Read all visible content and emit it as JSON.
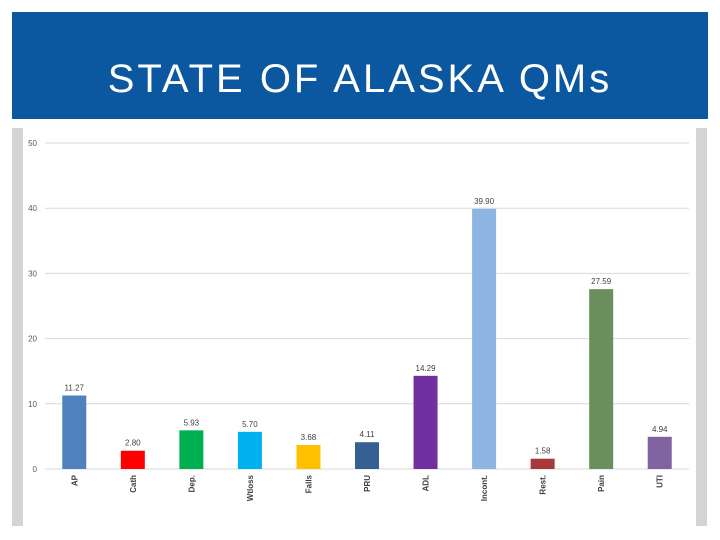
{
  "slide": {
    "title": "STATE OF ALASKA QMs",
    "colors": {
      "title_bar": "#0b57a0",
      "title_text": "#ffffff",
      "side_bars": "#d4d4d4",
      "gridline": "#d9d9d9"
    }
  },
  "chart_data": {
    "type": "bar",
    "title": "",
    "xlabel": "",
    "ylabel": "",
    "ylim": [
      0,
      50
    ],
    "yticks": [
      0,
      10,
      20,
      30,
      40,
      50
    ],
    "grid": true,
    "legend": "none",
    "categories": [
      "AP",
      "Cath",
      "Dep.",
      "Wtloss",
      "Falls",
      "PRU",
      "ADL",
      "Incont.",
      "Rest.",
      "Pain",
      "UTI"
    ],
    "values": [
      11.27,
      2.8,
      5.93,
      5.7,
      3.68,
      4.11,
      14.29,
      39.9,
      1.58,
      27.59,
      4.94
    ],
    "data_labels": [
      "11.27",
      "2.80",
      "5.93",
      "5.70",
      "3.68",
      "4.11",
      "14.29",
      "39.90",
      "1.58",
      "27.59",
      "4.94"
    ],
    "bar_colors": [
      "#4f81bd",
      "#ff0000",
      "#00b050",
      "#00b0f0",
      "#ffc000",
      "#376092",
      "#7030a0",
      "#8eb4e3",
      "#a63a3a",
      "#6a8f5d",
      "#8064a2"
    ]
  }
}
